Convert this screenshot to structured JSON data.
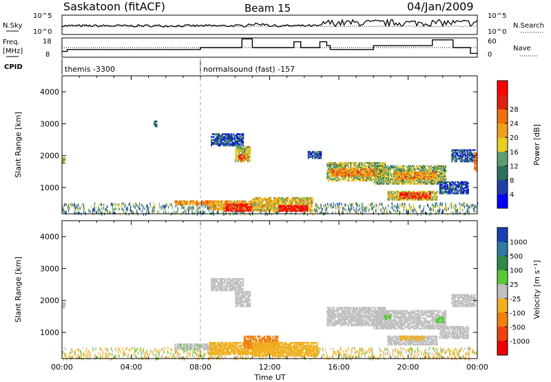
{
  "header": {
    "station": "Saskatoon (fitACF)",
    "beam": "Beam 15",
    "date": "04/Jan/2009"
  },
  "noise_panel": {
    "left_label": "N.Sky",
    "left_ticks": [
      "10^5",
      "10^0"
    ],
    "right_ticks": [
      "10^5",
      "10^0"
    ],
    "right_label": "N.Search",
    "sky_level": 0.45,
    "search_level": 0.42
  },
  "freq_panel": {
    "left_label_1": "Freq.",
    "left_label_2": "[MHz]",
    "left_ticks": [
      "18",
      "8"
    ],
    "right_ticks": [
      "60",
      "0"
    ],
    "right_label": "Nave",
    "freq_steps": [
      [
        0,
        11
      ],
      [
        0.3,
        11
      ],
      [
        0.3,
        12
      ],
      [
        8.0,
        12
      ],
      [
        8.0,
        13
      ],
      [
        10.4,
        13
      ],
      [
        10.4,
        17.5
      ],
      [
        11.0,
        17.5
      ],
      [
        11.0,
        13
      ],
      [
        13.4,
        13
      ],
      [
        13.4,
        16
      ],
      [
        13.8,
        16
      ],
      [
        13.8,
        13
      ],
      [
        14.9,
        13
      ],
      [
        14.9,
        16
      ],
      [
        15.3,
        16
      ],
      [
        15.3,
        14
      ],
      [
        15.5,
        14
      ],
      [
        15.5,
        12
      ],
      [
        18.0,
        12
      ],
      [
        18.0,
        14
      ],
      [
        21.4,
        14
      ],
      [
        21.4,
        17
      ],
      [
        22.6,
        17
      ],
      [
        22.6,
        13
      ],
      [
        23.6,
        13
      ],
      [
        23.6,
        10
      ],
      [
        24,
        10
      ]
    ],
    "freq_range": [
      8,
      18
    ],
    "nave_level": 30,
    "nave_range": [
      0,
      60
    ]
  },
  "cpid": {
    "label": "CPID",
    "modes": [
      {
        "start": 0,
        "text": "themis -3300"
      },
      {
        "start": 8.0,
        "text": "normalsound (fast) -157"
      }
    ]
  },
  "power_colorbar": {
    "label": "Power [dB]",
    "ticks": [
      "4",
      "8",
      "12",
      "16",
      "20",
      "24",
      "28"
    ],
    "colors": [
      "#0000ff",
      "#1e3fa8",
      "#2e6e5e",
      "#5aa06e",
      "#e8d020",
      "#f0a020",
      "#f07010",
      "#e02010",
      "#ff0000"
    ]
  },
  "velocity_colorbar": {
    "label": "Velocity [m s⁻¹]",
    "ticks": [
      "1000",
      "500",
      "100",
      "25",
      "-25",
      "-100",
      "-500",
      "-1000"
    ],
    "colors": [
      "#1a3fb0",
      "#2e7aa0",
      "#2e8a4a",
      "#5ac83a",
      "#c0c0c0",
      "#f0b020",
      "#f08010",
      "#f04010",
      "#f00000"
    ]
  },
  "x_axis": {
    "label": "Time UT",
    "ticks": [
      "00:00",
      "04:00",
      "08:00",
      "12:00",
      "16:00",
      "20:00",
      "00:00"
    ]
  },
  "chart_data": [
    {
      "type": "heatmap",
      "title": "",
      "xlabel": "",
      "ylabel": "Slant Range [km]",
      "xlim": [
        0,
        24
      ],
      "ylim": [
        180,
        4500
      ],
      "y_ticks": [
        "1000",
        "2000",
        "3000",
        "4000"
      ],
      "colorbar_label": "Power [dB]",
      "colorbar_range": [
        0,
        30
      ],
      "regions": [
        {
          "t0": 5.3,
          "t1": 5.5,
          "r0": 2900,
          "r1": 3100,
          "value": 8
        },
        {
          "t0": 8.6,
          "t1": 10.5,
          "r0": 2300,
          "r1": 2700,
          "value": 6
        },
        {
          "t0": 10.0,
          "t1": 10.9,
          "r0": 1800,
          "r1": 2300,
          "value": 14
        },
        {
          "t0": 10.2,
          "t1": 10.7,
          "r0": 1850,
          "r1": 2050,
          "value": 22
        },
        {
          "t0": 6.5,
          "t1": 9.0,
          "r0": 450,
          "r1": 600,
          "value": 20
        },
        {
          "t0": 8.5,
          "t1": 11.0,
          "r0": 300,
          "r1": 600,
          "value": 18
        },
        {
          "t0": 9.4,
          "t1": 11.0,
          "r0": 250,
          "r1": 500,
          "value": 26
        },
        {
          "t0": 11.0,
          "t1": 14.5,
          "r0": 250,
          "r1": 700,
          "value": 16
        },
        {
          "t0": 12.5,
          "t1": 14.2,
          "r0": 250,
          "r1": 450,
          "value": 28
        },
        {
          "t0": 15.3,
          "t1": 18.7,
          "r0": 1200,
          "r1": 1800,
          "value": 14
        },
        {
          "t0": 15.5,
          "t1": 18.5,
          "r0": 1350,
          "r1": 1600,
          "value": 20
        },
        {
          "t0": 18.0,
          "t1": 22.2,
          "r0": 1100,
          "r1": 1700,
          "value": 13
        },
        {
          "t0": 19.2,
          "t1": 21.7,
          "r0": 1250,
          "r1": 1500,
          "value": 19
        },
        {
          "t0": 18.8,
          "t1": 21.7,
          "r0": 600,
          "r1": 900,
          "value": 15
        },
        {
          "t0": 19.5,
          "t1": 21.3,
          "r0": 650,
          "r1": 850,
          "value": 25
        },
        {
          "t0": 21.8,
          "t1": 23.5,
          "r0": 800,
          "r1": 1200,
          "value": 6
        },
        {
          "t0": 22.5,
          "t1": 23.9,
          "r0": 1800,
          "r1": 2200,
          "value": 7
        },
        {
          "t0": 23.8,
          "t1": 24.0,
          "r0": 1500,
          "r1": 2100,
          "value": 22
        },
        {
          "t0": 0.0,
          "t1": 0.2,
          "r0": 1750,
          "r1": 1950,
          "value": 16
        },
        {
          "t0": 14.2,
          "t1": 15.0,
          "r0": 1900,
          "r1": 2150,
          "value": 6
        }
      ]
    },
    {
      "type": "heatmap",
      "title": "",
      "xlabel": "Time UT",
      "ylabel": "Slant Range [km]",
      "xlim": [
        0,
        24
      ],
      "ylim": [
        180,
        4500
      ],
      "y_ticks": [
        "1000",
        "2000",
        "3000",
        "4000"
      ],
      "colorbar_label": "Velocity [m s⁻¹]",
      "colorbar_range": [
        -1000,
        1000
      ],
      "regions": [
        {
          "t0": 8.6,
          "t1": 10.5,
          "r0": 2300,
          "r1": 2700,
          "value": 0
        },
        {
          "t0": 10.0,
          "t1": 10.9,
          "r0": 1800,
          "r1": 2300,
          "value": 0
        },
        {
          "t0": 6.5,
          "t1": 9.0,
          "r0": 450,
          "r1": 650,
          "value": 10
        },
        {
          "t0": 8.5,
          "t1": 11.5,
          "r0": 300,
          "r1": 700,
          "value": -150
        },
        {
          "t0": 10.5,
          "t1": 12.5,
          "r0": 500,
          "r1": 900,
          "value": -600
        },
        {
          "t0": 11.0,
          "t1": 14.8,
          "r0": 250,
          "r1": 700,
          "value": -120
        },
        {
          "t0": 15.3,
          "t1": 18.7,
          "r0": 1200,
          "r1": 1800,
          "value": 0
        },
        {
          "t0": 18.0,
          "t1": 22.2,
          "r0": 1100,
          "r1": 1700,
          "value": 0
        },
        {
          "t0": 18.8,
          "t1": 21.7,
          "r0": 600,
          "r1": 900,
          "value": 0
        },
        {
          "t0": 19.5,
          "t1": 21.0,
          "r0": 750,
          "r1": 900,
          "value": -120
        },
        {
          "t0": 21.6,
          "t1": 22.1,
          "r0": 1300,
          "r1": 1500,
          "value": 60
        },
        {
          "t0": 18.6,
          "t1": 19.0,
          "r0": 1400,
          "r1": 1550,
          "value": 60
        },
        {
          "t0": 21.8,
          "t1": 23.5,
          "r0": 800,
          "r1": 1200,
          "value": 0
        },
        {
          "t0": 22.5,
          "t1": 23.9,
          "r0": 1800,
          "r1": 2200,
          "value": 0
        },
        {
          "t0": 0.0,
          "t1": 0.2,
          "r0": 1750,
          "r1": 1950,
          "value": 0
        }
      ]
    }
  ]
}
